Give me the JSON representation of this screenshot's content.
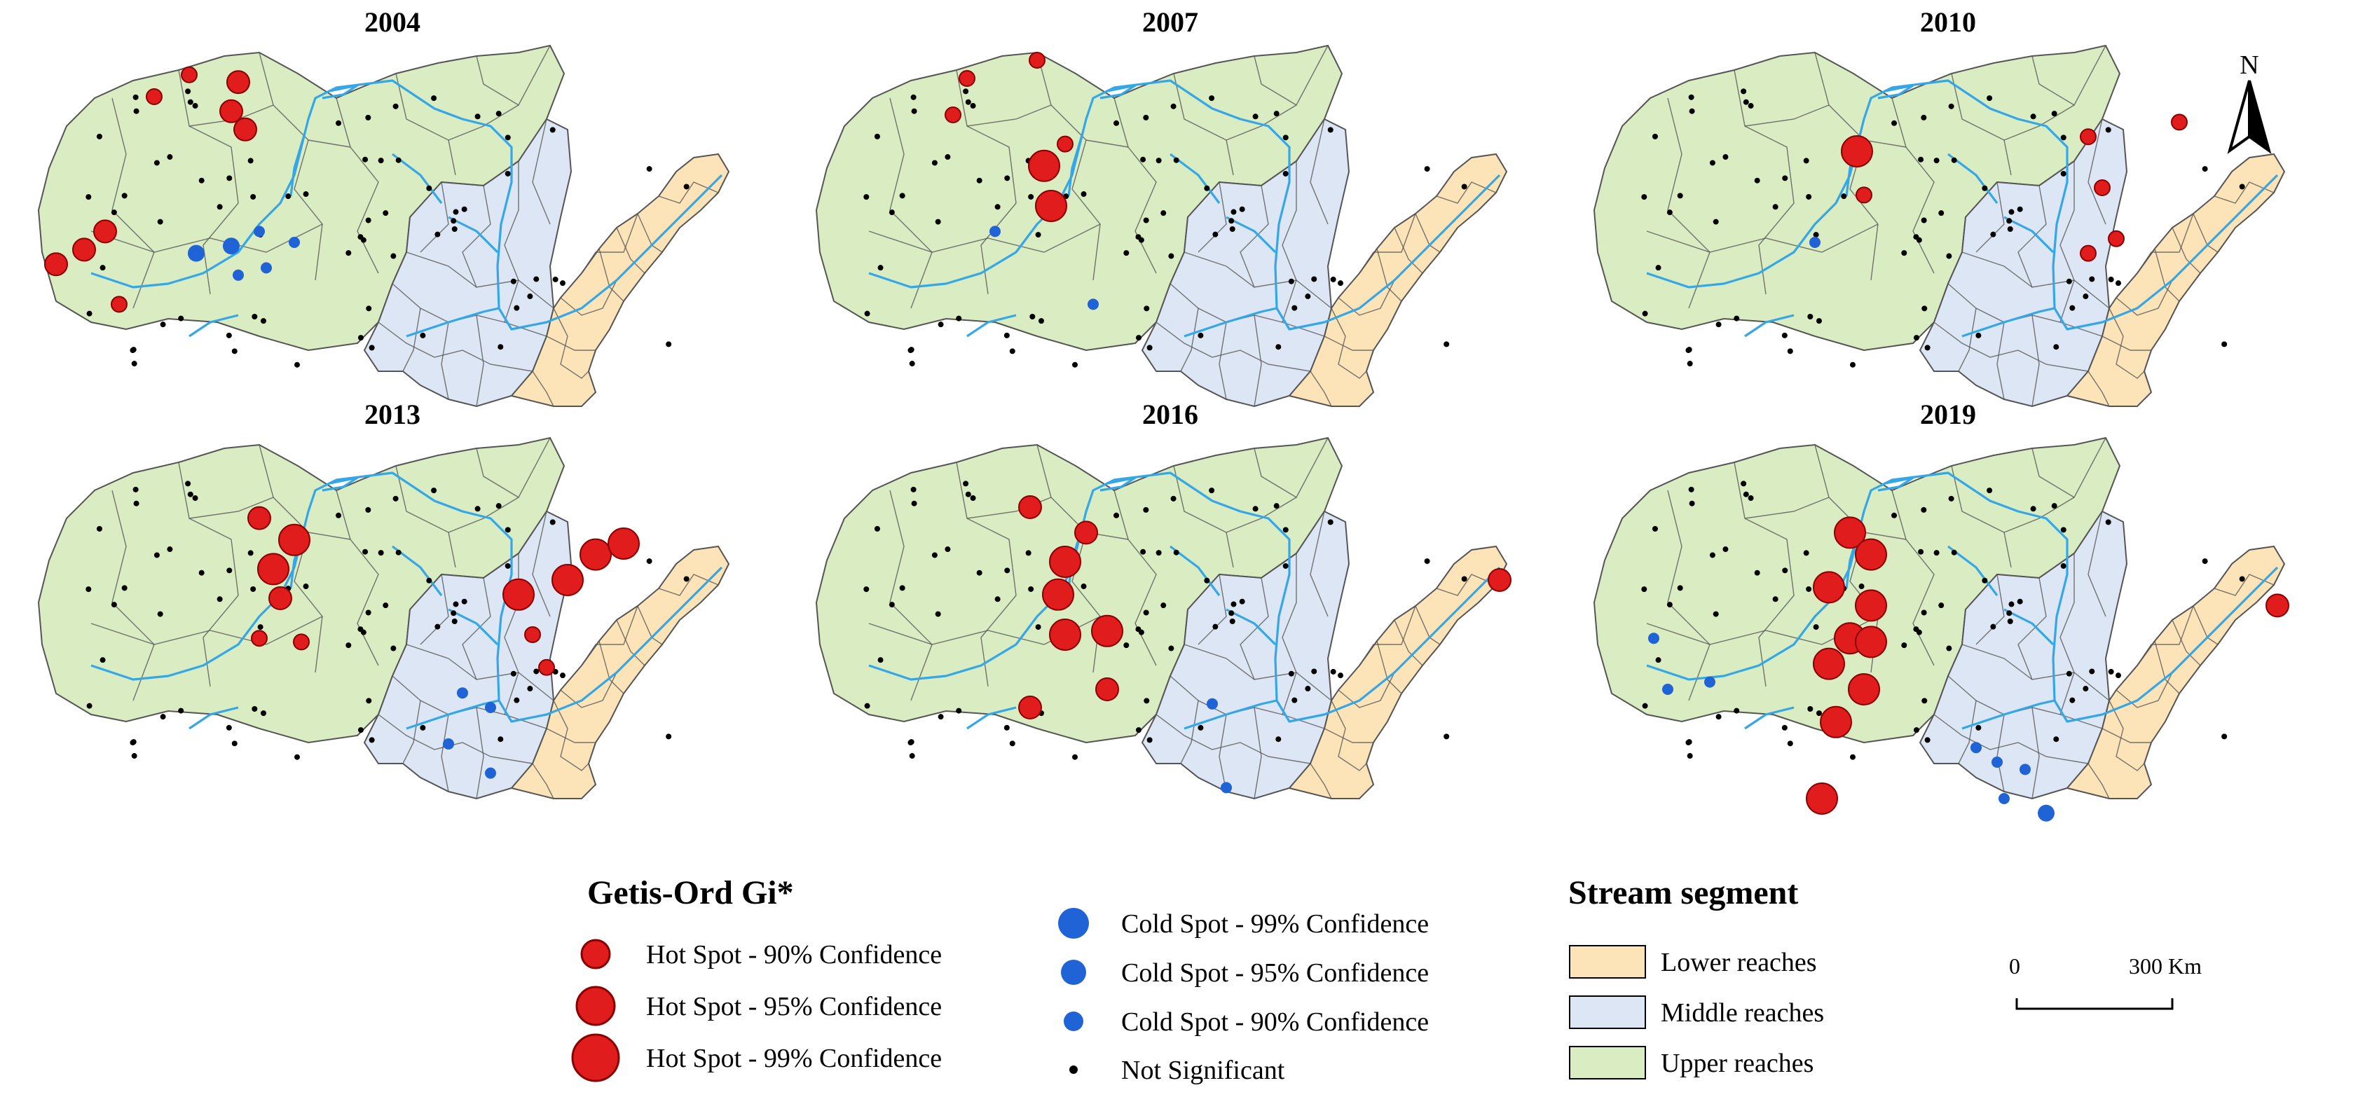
{
  "figure": {
    "panels": [
      {
        "year": "2004",
        "hot": [
          [
            0.18,
            0.15,
            1
          ],
          [
            0.23,
            0.09,
            1
          ],
          [
            0.3,
            0.11,
            2
          ],
          [
            0.29,
            0.19,
            2
          ],
          [
            0.31,
            0.24,
            2
          ],
          [
            0.04,
            0.61,
            2
          ],
          [
            0.08,
            0.57,
            2
          ],
          [
            0.11,
            0.52,
            2
          ],
          [
            0.13,
            0.72,
            1
          ]
        ],
        "cold": [
          [
            0.24,
            0.58,
            2
          ],
          [
            0.29,
            0.56,
            2
          ],
          [
            0.33,
            0.52,
            1
          ],
          [
            0.3,
            0.64,
            1
          ],
          [
            0.34,
            0.62,
            1
          ],
          [
            0.38,
            0.55,
            1
          ]
        ]
      },
      {
        "year": "2007",
        "hot": [
          [
            0.21,
            0.2,
            1
          ],
          [
            0.23,
            0.1,
            1
          ],
          [
            0.33,
            0.05,
            1
          ],
          [
            0.34,
            0.34,
            3
          ],
          [
            0.35,
            0.45,
            3
          ],
          [
            0.37,
            0.28,
            1
          ]
        ],
        "cold": [
          [
            0.27,
            0.52,
            1
          ],
          [
            0.41,
            0.72,
            1
          ]
        ]
      },
      {
        "year": "2010",
        "hot": [
          [
            0.39,
            0.3,
            3
          ],
          [
            0.4,
            0.42,
            1
          ],
          [
            0.72,
            0.26,
            1
          ],
          [
            0.74,
            0.4,
            1
          ],
          [
            0.72,
            0.58,
            1
          ],
          [
            0.76,
            0.54,
            1
          ],
          [
            0.85,
            0.22,
            1
          ]
        ],
        "cold": [
          [
            0.33,
            0.55,
            1
          ]
        ]
      },
      {
        "year": "2013",
        "hot": [
          [
            0.33,
            0.23,
            2
          ],
          [
            0.38,
            0.29,
            3
          ],
          [
            0.35,
            0.37,
            3
          ],
          [
            0.36,
            0.45,
            2
          ],
          [
            0.33,
            0.56,
            1
          ],
          [
            0.39,
            0.57,
            1
          ],
          [
            0.7,
            0.44,
            3
          ],
          [
            0.77,
            0.4,
            3
          ],
          [
            0.81,
            0.33,
            3
          ],
          [
            0.85,
            0.3,
            3
          ],
          [
            0.72,
            0.55,
            1
          ],
          [
            0.74,
            0.64,
            1
          ]
        ],
        "cold": [
          [
            0.62,
            0.71,
            1
          ],
          [
            0.66,
            0.75,
            1
          ],
          [
            0.6,
            0.85,
            1
          ],
          [
            0.66,
            0.93,
            1
          ]
        ]
      },
      {
        "year": "2016",
        "hot": [
          [
            0.32,
            0.2,
            2
          ],
          [
            0.4,
            0.27,
            2
          ],
          [
            0.37,
            0.35,
            3
          ],
          [
            0.36,
            0.44,
            3
          ],
          [
            0.37,
            0.55,
            3
          ],
          [
            0.43,
            0.54,
            3
          ],
          [
            0.43,
            0.7,
            2
          ],
          [
            0.32,
            0.75,
            2
          ],
          [
            0.99,
            0.4,
            2
          ]
        ],
        "cold": [
          [
            0.58,
            0.74,
            1
          ],
          [
            0.6,
            0.97,
            1
          ]
        ]
      },
      {
        "year": "2019",
        "hot": [
          [
            0.38,
            0.27,
            3
          ],
          [
            0.41,
            0.33,
            3
          ],
          [
            0.35,
            0.42,
            3
          ],
          [
            0.41,
            0.47,
            3
          ],
          [
            0.38,
            0.56,
            3
          ],
          [
            0.41,
            0.57,
            3
          ],
          [
            0.35,
            0.63,
            3
          ],
          [
            0.4,
            0.7,
            3
          ],
          [
            0.36,
            0.79,
            3
          ],
          [
            0.34,
            1.0,
            3
          ],
          [
            0.99,
            0.47,
            2
          ]
        ],
        "cold": [
          [
            0.1,
            0.56,
            1
          ],
          [
            0.12,
            0.7,
            1
          ],
          [
            0.18,
            0.68,
            1
          ],
          [
            0.56,
            0.86,
            1
          ],
          [
            0.59,
            0.9,
            1
          ],
          [
            0.63,
            0.92,
            1
          ],
          [
            0.6,
            1.0,
            1
          ],
          [
            0.66,
            1.04,
            2
          ]
        ]
      }
    ]
  },
  "legend_gi": {
    "title": "Getis-Ord Gi*",
    "hot_items": [
      {
        "label": "Hot Spot - 90% Confidence",
        "size": 1
      },
      {
        "label": "Hot Spot - 95% Confidence",
        "size": 2
      },
      {
        "label": "Hot Spot - 99% Confidence",
        "size": 3
      }
    ],
    "cold_items": [
      {
        "label": "Cold Spot - 99% Confidence",
        "size": 3
      },
      {
        "label": "Cold Spot - 95% Confidence",
        "size": 2
      },
      {
        "label": "Cold Spot - 90% Confidence",
        "size": 1
      }
    ],
    "ns_label": "Not Significant"
  },
  "legend_segment": {
    "title": "Stream segment",
    "items": [
      {
        "label": "Lower reaches",
        "color": "#fce4b8"
      },
      {
        "label": "Middle reaches",
        "color": "#dde6f5"
      },
      {
        "label": "Upper reaches",
        "color": "#d9ecc2"
      }
    ]
  },
  "scale": {
    "start": "0",
    "end": "300 Km"
  },
  "north": {
    "label": "N"
  },
  "colors": {
    "hot": "#e11c1c",
    "hot_stroke": "#8a0000",
    "cold": "#1f63d6",
    "river": "#35a6e6",
    "boundary": "#555555",
    "upper": "#d9ecc2",
    "middle": "#dde6f5",
    "lower": "#fce4b8"
  }
}
